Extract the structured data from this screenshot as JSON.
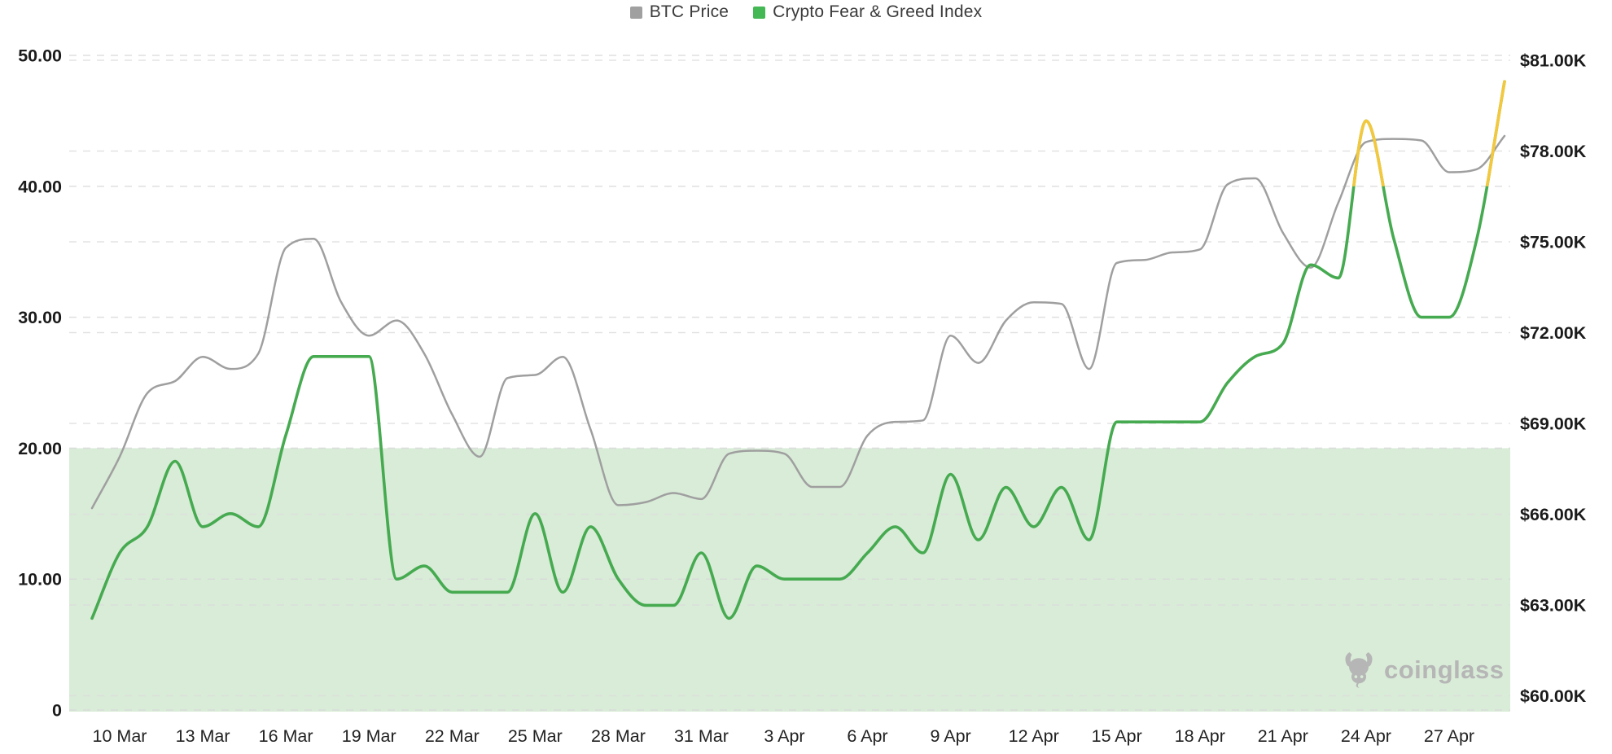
{
  "legend": {
    "items": [
      {
        "label": "BTC Price",
        "color": "#a0a0a0"
      },
      {
        "label": "Crypto Fear & Greed Index",
        "color": "#44b854"
      }
    ]
  },
  "watermark": {
    "brand": "coinglass"
  },
  "chart_data": {
    "type": "line",
    "title": "",
    "xlabel": "",
    "ylabel_left": "Crypto Fear & Greed Index",
    "ylabel_right": "BTC Price",
    "grid": "dashed",
    "legend_position": "top-center",
    "x_tick_labels": [
      "10 Mar",
      "13 Mar",
      "16 Mar",
      "19 Mar",
      "22 Mar",
      "25 Mar",
      "28 Mar",
      "31 Mar",
      "3 Apr",
      "6 Apr",
      "9 Apr",
      "12 Apr",
      "15 Apr",
      "18 Apr",
      "21 Apr",
      "24 Apr",
      "27 Apr"
    ],
    "dates": [
      "9 Mar",
      "10 Mar",
      "11 Mar",
      "12 Mar",
      "13 Mar",
      "14 Mar",
      "15 Mar",
      "16 Mar",
      "17 Mar",
      "18 Mar",
      "19 Mar",
      "20 Mar",
      "21 Mar",
      "22 Mar",
      "23 Mar",
      "24 Mar",
      "25 Mar",
      "26 Mar",
      "27 Mar",
      "28 Mar",
      "29 Mar",
      "30 Mar",
      "31 Mar",
      "1 Apr",
      "2 Apr",
      "3 Apr",
      "4 Apr",
      "5 Apr",
      "6 Apr",
      "7 Apr",
      "8 Apr",
      "9 Apr",
      "10 Apr",
      "11 Apr",
      "12 Apr",
      "13 Apr",
      "14 Apr",
      "15 Apr",
      "16 Apr",
      "17 Apr",
      "18 Apr",
      "19 Apr",
      "20 Apr",
      "21 Apr",
      "22 Apr",
      "23 Apr",
      "24 Apr",
      "25 Apr",
      "26 Apr",
      "27 Apr",
      "28 Apr",
      "29 Apr"
    ],
    "left_axis": {
      "min": 0,
      "max": 50,
      "tick_values": [
        0,
        10,
        20,
        30,
        40,
        50
      ],
      "tick_labels": [
        "0",
        "10.00",
        "20.00",
        "30.00",
        "40.00",
        "50.00"
      ]
    },
    "right_axis": {
      "min": 60,
      "max": 81,
      "tick_values": [
        60,
        63,
        66,
        69,
        72,
        75,
        78,
        81
      ],
      "tick_labels": [
        "$60.00K",
        "$63.00K",
        "$66.00K",
        "$69.00K",
        "$72.00K",
        "$75.00K",
        "$78.00K",
        "$81.00K"
      ]
    },
    "fear_band": {
      "from": 0,
      "to": 20,
      "color": "#d9ecd8"
    },
    "greed_threshold": {
      "value": 40,
      "above_color": "#f5c83c"
    },
    "series": [
      {
        "name": "BTC Price",
        "axis": "right",
        "color": "#9f9f9f",
        "width": 2.5,
        "values": [
          66.2,
          67.9,
          70.0,
          70.4,
          71.2,
          70.8,
          71.3,
          74.8,
          75.1,
          73.0,
          71.9,
          72.4,
          71.3,
          69.3,
          67.9,
          70.5,
          70.6,
          71.2,
          68.8,
          66.3,
          66.4,
          66.7,
          66.5,
          68.0,
          68.1,
          68.0,
          66.9,
          66.9,
          68.6,
          69.05,
          69.1,
          71.9,
          71.0,
          72.4,
          73.0,
          72.95,
          70.8,
          74.3,
          74.4,
          74.65,
          74.75,
          76.9,
          77.1,
          75.3,
          74.15,
          76.3,
          78.3,
          78.4,
          78.35,
          77.3,
          77.4,
          78.5
        ]
      },
      {
        "name": "Crypto Fear & Greed Index",
        "axis": "left",
        "color": "#46aa50",
        "width": 3.6,
        "values": [
          7,
          12,
          14,
          19,
          14,
          15,
          14,
          21,
          27,
          27,
          27,
          10,
          11,
          9,
          9,
          9,
          15,
          9,
          14,
          10,
          8,
          8,
          12,
          7,
          11,
          10,
          10,
          10,
          12,
          14,
          12,
          18,
          13,
          17,
          14,
          17,
          13,
          22,
          22,
          22,
          22,
          25,
          27,
          28,
          34,
          33,
          45,
          36,
          30,
          30,
          36,
          48
        ]
      }
    ]
  }
}
